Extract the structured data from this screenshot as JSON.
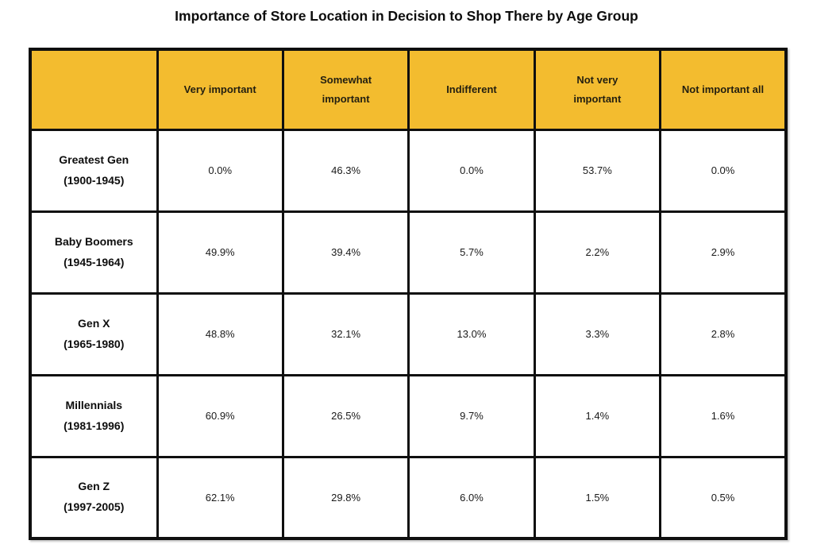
{
  "page": {
    "title": "Importance of Store Location in Decision to Shop There by Age Group"
  },
  "colors": {
    "header_bg": "#F3BC2F",
    "header_text": "#231f10",
    "border": "#0f0f0f",
    "body_text": "#1a1a1a",
    "background": "#ffffff"
  },
  "chart_data": {
    "type": "table",
    "title": "Importance of Store Location in Decision to Shop There by Age Group",
    "columns": [
      "",
      "Very important",
      "Somewhat\nimportant",
      "Indifferent",
      "Not very\nimportant",
      "Not important all"
    ],
    "rows": [
      {
        "group": "Greatest Gen",
        "years": "(1900-1945)",
        "values": [
          "0.0%",
          "46.3%",
          "0.0%",
          "53.7%",
          "0.0%"
        ]
      },
      {
        "group": "Baby Boomers",
        "years": "(1945-1964)",
        "values": [
          "49.9%",
          "39.4%",
          "5.7%",
          "2.2%",
          "2.9%"
        ]
      },
      {
        "group": "Gen X",
        "years": "(1965-1980)",
        "values": [
          "48.8%",
          "32.1%",
          "13.0%",
          "3.3%",
          "2.8%"
        ]
      },
      {
        "group": "Millennials",
        "years": "(1981-1996)",
        "values": [
          "60.9%",
          "26.5%",
          "9.7%",
          "1.4%",
          "1.6%"
        ]
      },
      {
        "group": "Gen Z",
        "years": "(1997-2005)",
        "values": [
          "62.1%",
          "29.8%",
          "6.0%",
          "1.5%",
          "0.5%"
        ]
      }
    ]
  }
}
